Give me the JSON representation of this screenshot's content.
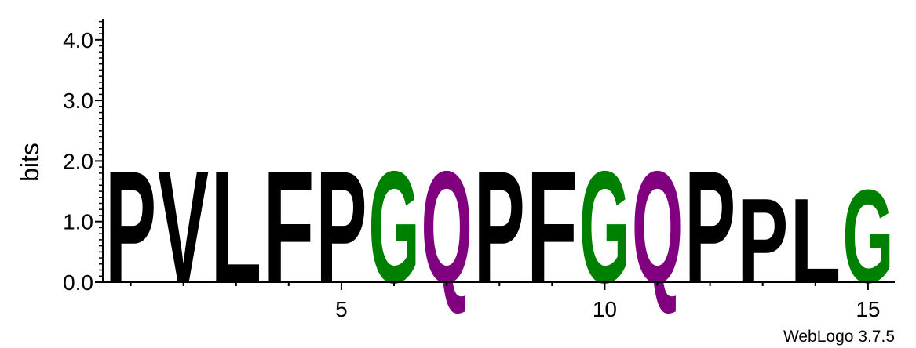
{
  "chart_data": {
    "type": "sequence-logo",
    "ylabel": "bits",
    "ylim": [
      0,
      4.32
    ],
    "y_ticks": [
      {
        "value": 0,
        "label": "0.0"
      },
      {
        "value": 1,
        "label": "1.0"
      },
      {
        "value": 2,
        "label": "2.0"
      },
      {
        "value": 3,
        "label": "3.0"
      },
      {
        "value": 4,
        "label": "4.0"
      }
    ],
    "x_ticks": [
      {
        "value": 5,
        "label": "5"
      },
      {
        "value": 10,
        "label": "10"
      },
      {
        "value": 15,
        "label": "15"
      }
    ],
    "positions": [
      {
        "pos": 1,
        "letter": "P",
        "bits": 1.92,
        "color": "#000000"
      },
      {
        "pos": 2,
        "letter": "V",
        "bits": 1.92,
        "color": "#000000"
      },
      {
        "pos": 3,
        "letter": "L",
        "bits": 1.92,
        "color": "#000000"
      },
      {
        "pos": 4,
        "letter": "F",
        "bits": 1.92,
        "color": "#000000"
      },
      {
        "pos": 5,
        "letter": "P",
        "bits": 1.92,
        "color": "#000000"
      },
      {
        "pos": 6,
        "letter": "G",
        "bits": 1.92,
        "color": "#008000"
      },
      {
        "pos": 7,
        "letter": "Q",
        "bits": 1.92,
        "color": "#800080"
      },
      {
        "pos": 8,
        "letter": "P",
        "bits": 1.92,
        "color": "#000000"
      },
      {
        "pos": 9,
        "letter": "F",
        "bits": 1.92,
        "color": "#000000"
      },
      {
        "pos": 10,
        "letter": "G",
        "bits": 1.92,
        "color": "#008000"
      },
      {
        "pos": 11,
        "letter": "Q",
        "bits": 1.92,
        "color": "#800080"
      },
      {
        "pos": 12,
        "letter": "P",
        "bits": 1.92,
        "color": "#000000"
      },
      {
        "pos": 13,
        "letter": "P",
        "bits": 1.45,
        "color": "#000000"
      },
      {
        "pos": 14,
        "letter": "L",
        "bits": 1.45,
        "color": "#000000"
      },
      {
        "pos": 15,
        "letter": "G",
        "bits": 1.6,
        "color": "#008000"
      }
    ],
    "credit": "WebLogo 3.7.5"
  }
}
